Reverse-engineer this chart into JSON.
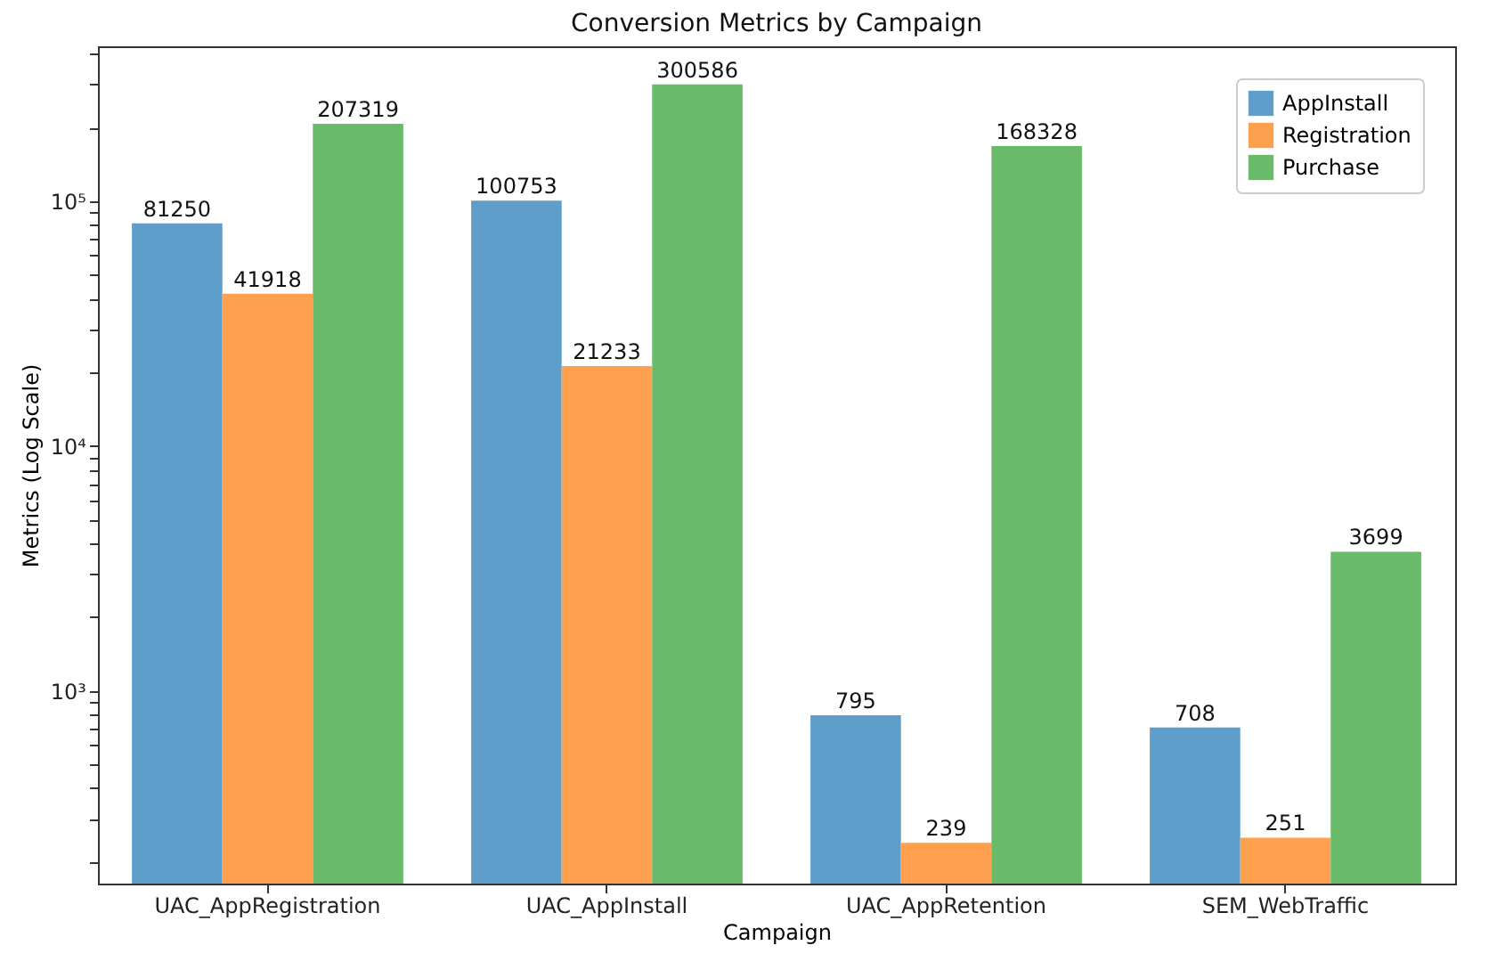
{
  "chart_data": {
    "type": "bar",
    "title": "Conversion Metrics by Campaign",
    "xlabel": "Campaign",
    "ylabel": "Metrics (Log Scale)",
    "categories": [
      "UAC_AppRegistration",
      "UAC_AppInstall",
      "UAC_AppRetention",
      "SEM_WebTraffic"
    ],
    "series": [
      {
        "name": "AppInstall",
        "color": "#5f9ecb",
        "values": [
          81250,
          100753,
          795,
          708
        ]
      },
      {
        "name": "Registration",
        "color": "#ffa04f",
        "values": [
          41918,
          21233,
          239,
          251
        ]
      },
      {
        "name": "Purchase",
        "color": "#69ba69",
        "values": [
          207319,
          300586,
          168328,
          3699
        ]
      }
    ],
    "log": true,
    "ylim": [
      163,
      430000
    ],
    "yticks": [
      {
        "value": 200,
        "label": null
      },
      {
        "value": 300,
        "label": null
      },
      {
        "value": 400,
        "label": null
      },
      {
        "value": 500,
        "label": null
      },
      {
        "value": 600,
        "label": null
      },
      {
        "value": 700,
        "label": null
      },
      {
        "value": 800,
        "label": null
      },
      {
        "value": 900,
        "label": null
      },
      {
        "value": 1000,
        "label": "10³"
      },
      {
        "value": 2000,
        "label": null
      },
      {
        "value": 3000,
        "label": null
      },
      {
        "value": 4000,
        "label": null
      },
      {
        "value": 5000,
        "label": null
      },
      {
        "value": 6000,
        "label": null
      },
      {
        "value": 7000,
        "label": null
      },
      {
        "value": 8000,
        "label": null
      },
      {
        "value": 9000,
        "label": null
      },
      {
        "value": 10000,
        "label": "10⁴"
      },
      {
        "value": 20000,
        "label": null
      },
      {
        "value": 30000,
        "label": null
      },
      {
        "value": 40000,
        "label": null
      },
      {
        "value": 50000,
        "label": null
      },
      {
        "value": 60000,
        "label": null
      },
      {
        "value": 70000,
        "label": null
      },
      {
        "value": 80000,
        "label": null
      },
      {
        "value": 90000,
        "label": null
      },
      {
        "value": 100000,
        "label": "10⁵"
      },
      {
        "value": 200000,
        "label": null
      },
      {
        "value": 300000,
        "label": null
      },
      {
        "value": 400000,
        "label": null
      }
    ],
    "data_labels": true,
    "legend": "top right"
  }
}
